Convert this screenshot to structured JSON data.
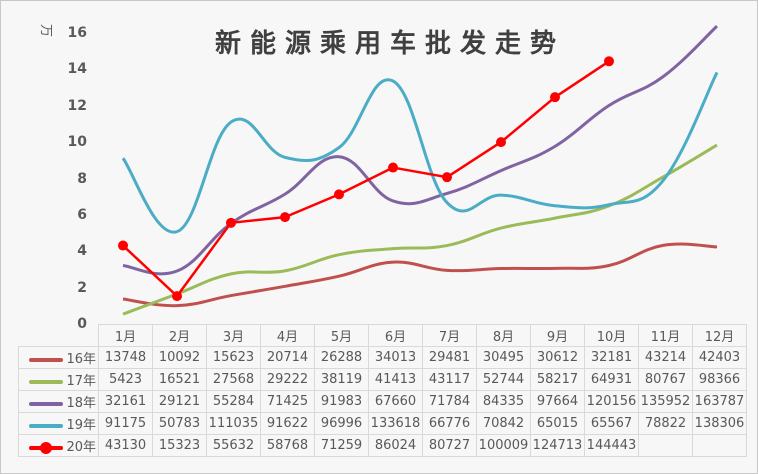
{
  "chart_data": {
    "type": "line",
    "title": "新能源乘用车批发走势",
    "ylabel": "万",
    "xlabel": "",
    "ylim": [
      0,
      16
    ],
    "yticks": [
      "0",
      "2",
      "4",
      "6",
      "8",
      "10",
      "12",
      "14",
      "16"
    ],
    "categories": [
      "1月",
      "2月",
      "3月",
      "4月",
      "5月",
      "6月",
      "7月",
      "8月",
      "9月",
      "10月",
      "11月",
      "12月"
    ],
    "grid": false,
    "legend_position": "data-table",
    "series": [
      {
        "name": "16年",
        "color": "#c0504d",
        "smooth": true,
        "markers": false,
        "values": [
          13748,
          10092,
          15623,
          20714,
          26288,
          34013,
          29481,
          30495,
          30612,
          32181,
          43214,
          42403
        ]
      },
      {
        "name": "17年",
        "color": "#9bbb59",
        "smooth": true,
        "markers": false,
        "values": [
          5423,
          16521,
          27568,
          29222,
          38119,
          41413,
          43117,
          52744,
          58217,
          64931,
          80767,
          98366
        ]
      },
      {
        "name": "18年",
        "color": "#8064a2",
        "smooth": true,
        "markers": false,
        "values": [
          32161,
          29121,
          55284,
          71425,
          91983,
          67660,
          71784,
          84335,
          97664,
          120156,
          135952,
          163787
        ]
      },
      {
        "name": "19年",
        "color": "#4bacc6",
        "smooth": true,
        "markers": false,
        "values": [
          91175,
          50783,
          111035,
          91622,
          96996,
          133618,
          66776,
          70842,
          65015,
          65567,
          78822,
          138306
        ]
      },
      {
        "name": "20年",
        "color": "#ff0000",
        "smooth": false,
        "markers": true,
        "values": [
          43130,
          15323,
          55632,
          58768,
          71259,
          86024,
          80727,
          100009,
          124713,
          144443,
          null,
          null
        ]
      }
    ]
  }
}
